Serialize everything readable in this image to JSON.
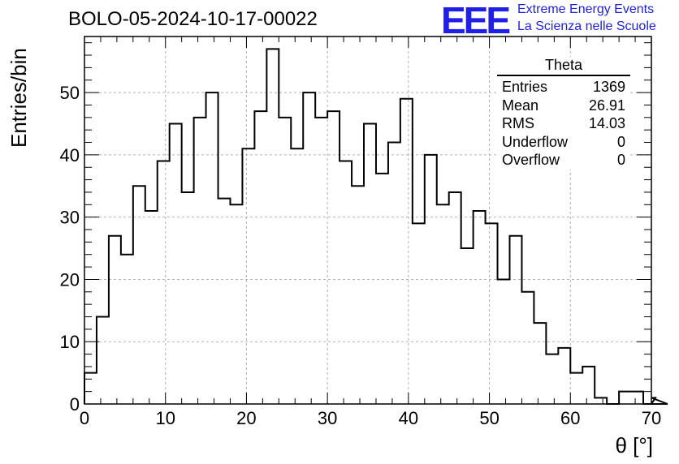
{
  "header": {
    "title": "BOLO-05-2024-10-17-00022",
    "logo_text": "EEE",
    "logo_line1": "Extreme Energy Events",
    "logo_line2": "La Scienza nelle Scuole"
  },
  "stats": {
    "title": "Theta",
    "rows": [
      {
        "label": "Entries",
        "value": "1369"
      },
      {
        "label": "Mean",
        "value": "26.91"
      },
      {
        "label": "RMS",
        "value": "14.03"
      },
      {
        "label": "Underflow",
        "value": "0"
      },
      {
        "label": "Overflow",
        "value": "0"
      }
    ]
  },
  "colors": {
    "line": "#000000",
    "grid": "#b0b0b0",
    "logo": "#1f1fe6"
  },
  "chart_data": {
    "type": "bar",
    "style": "step-histogram",
    "title": "BOLO-05-2024-10-17-00022",
    "xlabel": "θ [°]",
    "ylabel": "Entries/bin",
    "xlim": [
      0,
      70
    ],
    "ylim": [
      0,
      59
    ],
    "grid": true,
    "bin_width": 1.5,
    "x_start": 0,
    "values": [
      5,
      14,
      27,
      24,
      35,
      31,
      39,
      45,
      34,
      46,
      50,
      33,
      32,
      41,
      47,
      57,
      46,
      41,
      50,
      46,
      47,
      39,
      35,
      45,
      37,
      42,
      49,
      29,
      40,
      32,
      34,
      25,
      31,
      29,
      20,
      27,
      18,
      13,
      8,
      9,
      5,
      6,
      1,
      0,
      2,
      2,
      0,
      1,
      0
    ],
    "x_ticks": [
      0,
      10,
      20,
      30,
      40,
      50,
      60,
      70
    ],
    "y_ticks": [
      0,
      10,
      20,
      30,
      40,
      50
    ]
  }
}
